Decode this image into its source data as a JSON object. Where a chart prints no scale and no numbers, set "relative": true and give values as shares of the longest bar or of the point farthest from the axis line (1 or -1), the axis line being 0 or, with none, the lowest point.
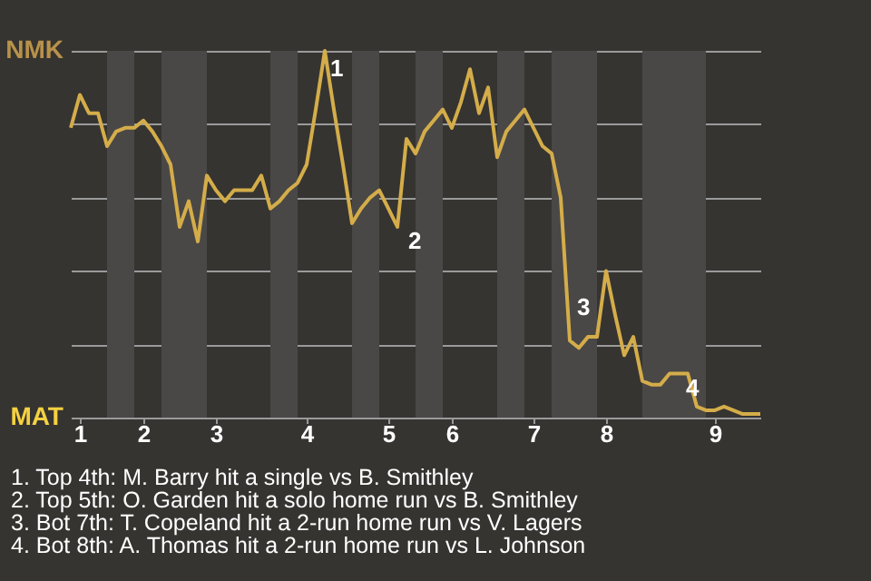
{
  "chart_data": {
    "type": "line",
    "relative": true,
    "categories": [
      null,
      "1",
      null,
      null,
      null,
      null,
      null,
      null,
      "2",
      null,
      null,
      null,
      null,
      null,
      null,
      null,
      "3",
      null,
      null,
      null,
      null,
      null,
      null,
      null,
      null,
      null,
      "4",
      null,
      null,
      null,
      null,
      null,
      null,
      null,
      null,
      "5",
      null,
      null,
      null,
      null,
      null,
      null,
      "6",
      null,
      null,
      null,
      null,
      null,
      null,
      null,
      null,
      "7",
      null,
      null,
      null,
      null,
      null,
      null,
      null,
      "8",
      null,
      null,
      null,
      null,
      null,
      null,
      null,
      null,
      null,
      null,
      null,
      "9",
      null,
      null,
      null,
      null,
      null
    ],
    "series": [
      {
        "color": "#d4ad4a",
        "values": [
          0.79,
          0.88,
          0.83,
          0.83,
          0.74,
          0.78,
          0.79,
          0.79,
          0.81,
          0.78,
          0.74,
          0.69,
          0.52,
          0.59,
          0.48,
          0.66,
          0.62,
          0.59,
          0.62,
          0.62,
          0.62,
          0.66,
          0.57,
          0.59,
          0.62,
          0.64,
          0.69,
          0.84,
          1,
          0.84,
          0.69,
          0.53,
          0.57,
          0.6,
          0.62,
          0.57,
          0.52,
          0.76,
          0.72,
          0.78,
          0.81,
          0.84,
          0.79,
          0.86,
          0.95,
          0.83,
          0.9,
          0.71,
          0.78,
          0.81,
          0.84,
          0.79,
          0.74,
          0.72,
          0.6,
          0.21,
          0.19,
          0.22,
          0.22,
          0.4,
          0.28,
          0.17,
          0.22,
          0.1,
          0.09,
          0.09,
          0.12,
          0.12,
          0.12,
          0.03,
          0.02,
          0.02,
          0.03,
          0.02,
          0.01,
          0.01,
          0.01
        ]
      }
    ],
    "grid": "y",
    "annotations": [
      "NMK",
      "MAT",
      "1",
      "2",
      "3",
      "4",
      "1. Top 4th: M. Barry hit a single vs B. Smithley",
      "2. Top 5th: O. Garden hit a solo home run vs B. Smithley",
      "3. Bot 7th: T. Copeland hit a 2-run home run vs V. Lagers",
      "4. Bot 8th: A. Thomas hit a 2-run home run vs L. Johnson"
    ],
    "marker": "none",
    "line_style": "solid"
  }
}
